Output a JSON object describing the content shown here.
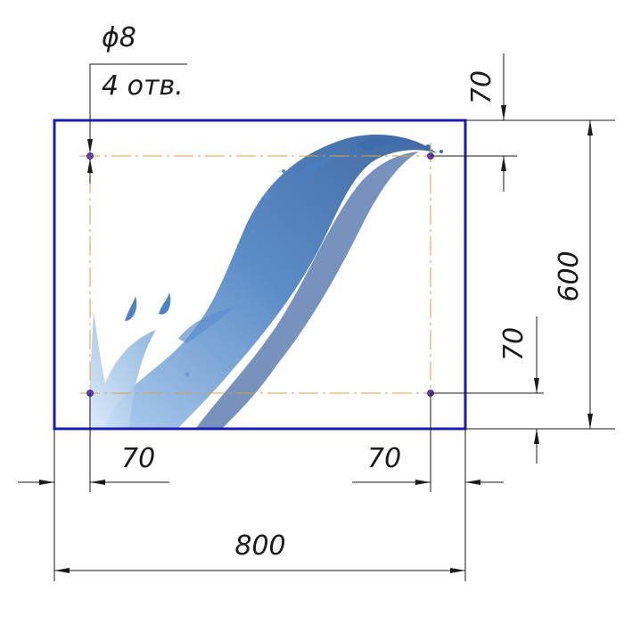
{
  "drawing": {
    "hole_spec": {
      "diameter": "ϕ8",
      "count": "4 отв."
    },
    "dimensions": {
      "top_offset": "70",
      "height": "600",
      "bottom_offset": "70",
      "left_offset": "70",
      "right_offset": "70",
      "width": "800"
    },
    "colors": {
      "panel_border": "#1c1cb4",
      "center_line": "#d9a04a",
      "hole": "#6a3fb5",
      "dimension_line": "#1a1a1a",
      "splash": "#2f63a8"
    }
  }
}
